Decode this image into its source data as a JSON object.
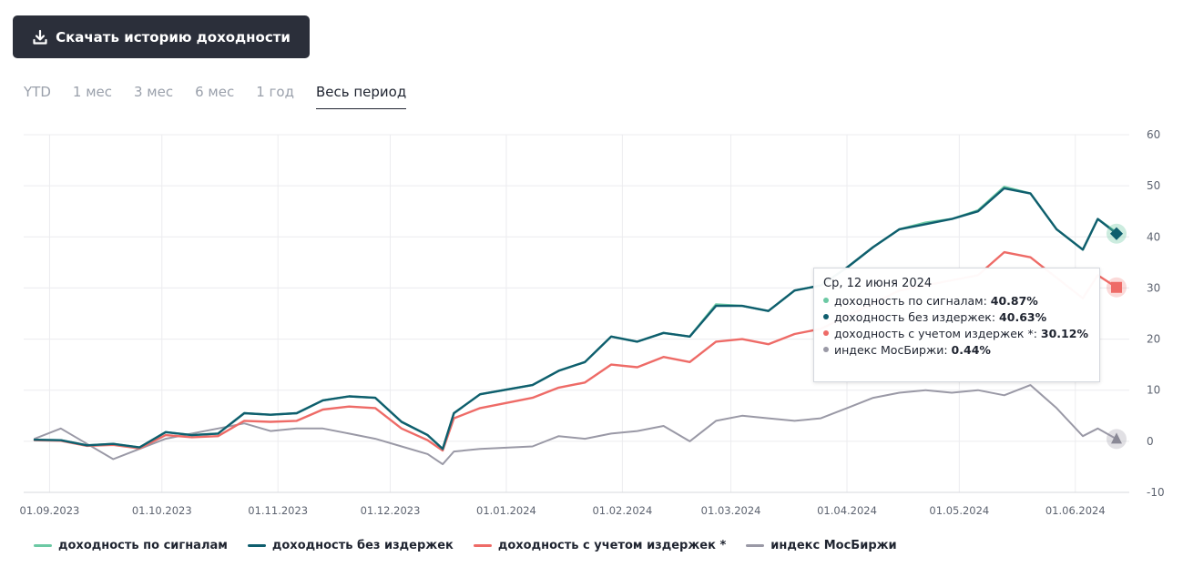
{
  "download_button": {
    "label": "Скачать историю доходности",
    "icon": "download-icon"
  },
  "period_tabs": [
    {
      "label": "YTD",
      "active": false
    },
    {
      "label": "1 мес",
      "active": false
    },
    {
      "label": "3 мес",
      "active": false
    },
    {
      "label": "6 мес",
      "active": false
    },
    {
      "label": "1 год",
      "active": false
    },
    {
      "label": "Весь период",
      "active": true
    }
  ],
  "tooltip": {
    "date": "Ср, 12 июня 2024",
    "rows": [
      {
        "label": "доходность по сигналам",
        "value": "40.87%",
        "color": "#6cc9a4"
      },
      {
        "label": "доходность без издержек",
        "value": "40.63%",
        "color": "#0f5e6e"
      },
      {
        "label": "доходность с учетом издержек *",
        "value": "30.12%",
        "color": "#ee6b67"
      },
      {
        "label": "индекс МосБиржи",
        "value": "0.44%",
        "color": "#9a99a6"
      }
    ]
  },
  "legend": [
    {
      "label": "доходность по сигналам",
      "color": "#6cc9a4"
    },
    {
      "label": "доходность без издержек",
      "color": "#0f5e6e"
    },
    {
      "label": "доходность с учетом издержек *",
      "color": "#ee6b67"
    },
    {
      "label": "индекс МосБиржи",
      "color": "#9a99a6"
    }
  ],
  "chart_data": {
    "type": "line",
    "x": [
      "2023-08-28",
      "2023-09-04",
      "2023-09-11",
      "2023-09-18",
      "2023-09-25",
      "2023-10-02",
      "2023-10-09",
      "2023-10-16",
      "2023-10-23",
      "2023-10-30",
      "2023-11-06",
      "2023-11-13",
      "2023-11-20",
      "2023-11-27",
      "2023-12-04",
      "2023-12-11",
      "2023-12-15",
      "2023-12-18",
      "2023-12-25",
      "2024-01-08",
      "2024-01-15",
      "2024-01-22",
      "2024-01-29",
      "2024-02-05",
      "2024-02-12",
      "2024-02-19",
      "2024-02-26",
      "2024-03-04",
      "2024-03-11",
      "2024-03-18",
      "2024-03-25",
      "2024-04-01",
      "2024-04-08",
      "2024-04-15",
      "2024-04-22",
      "2024-04-29",
      "2024-05-06",
      "2024-05-13",
      "2024-05-20",
      "2024-05-27",
      "2024-06-03",
      "2024-06-07",
      "2024-06-12"
    ],
    "x_tick_labels": [
      "01.09.2023",
      "01.10.2023",
      "01.11.2023",
      "01.12.2023",
      "01.01.2024",
      "01.02.2024",
      "01.03.2024",
      "01.04.2024",
      "01.05.2024",
      "01.06.2024"
    ],
    "x_ticks": [
      "2023-09-01",
      "2023-10-01",
      "2023-11-01",
      "2023-12-01",
      "2024-01-01",
      "2024-02-01",
      "2024-03-01",
      "2024-04-01",
      "2024-05-01",
      "2024-06-01"
    ],
    "ylim": [
      -10,
      60
    ],
    "y_ticks": [
      -10,
      0,
      10,
      20,
      30,
      40,
      50,
      60
    ],
    "y_axis_position": "right",
    "grid": true,
    "legend_position": "bottom-left",
    "series": [
      {
        "name": "доходность по сигналам",
        "color": "#6cc9a4",
        "values": [
          0.3,
          0.2,
          -0.8,
          -0.5,
          -1.2,
          1.8,
          1.2,
          1.5,
          5.5,
          5.2,
          5.5,
          8.0,
          8.8,
          8.5,
          3.8,
          1.2,
          -1.5,
          5.5,
          9.2,
          11.0,
          13.8,
          15.5,
          20.5,
          19.5,
          21.2,
          20.5,
          26.8,
          26.5,
          25.5,
          29.5,
          30.5,
          34.0,
          38.0,
          41.5,
          42.8,
          43.5,
          45.2,
          49.8,
          48.5,
          41.5,
          37.5,
          43.5,
          40.87
        ]
      },
      {
        "name": "доходность без издержек",
        "color": "#0f5e6e",
        "values": [
          0.3,
          0.2,
          -0.8,
          -0.5,
          -1.2,
          1.8,
          1.2,
          1.5,
          5.5,
          5.2,
          5.5,
          8.0,
          8.8,
          8.5,
          3.8,
          1.2,
          -1.5,
          5.5,
          9.2,
          11.0,
          13.8,
          15.5,
          20.5,
          19.5,
          21.2,
          20.5,
          26.5,
          26.5,
          25.5,
          29.5,
          30.5,
          34.0,
          38.0,
          41.5,
          42.5,
          43.5,
          45.0,
          49.5,
          48.5,
          41.5,
          37.5,
          43.5,
          40.63
        ]
      },
      {
        "name": "доходность с учетом издержек *",
        "color": "#ee6b67",
        "values": [
          0.2,
          0.1,
          -0.9,
          -0.7,
          -1.4,
          1.2,
          0.8,
          1.0,
          4.0,
          3.8,
          4.0,
          6.2,
          6.8,
          6.5,
          2.5,
          0.2,
          -1.8,
          4.5,
          6.5,
          8.5,
          10.5,
          11.5,
          15.0,
          14.5,
          16.5,
          15.5,
          19.5,
          20.0,
          19.0,
          21.0,
          22.0,
          24.5,
          27.0,
          29.5,
          30.5,
          31.5,
          32.5,
          37.0,
          36.0,
          32.0,
          28.0,
          32.5,
          30.12
        ]
      },
      {
        "name": "индекс МосБиржи",
        "color": "#9a99a6",
        "values": [
          0.5,
          2.5,
          -0.5,
          -3.5,
          -1.5,
          0.5,
          1.5,
          2.5,
          3.5,
          2.0,
          2.5,
          2.5,
          1.5,
          0.5,
          -1.0,
          -2.5,
          -4.5,
          -2.0,
          -1.5,
          -1.0,
          1.0,
          0.5,
          1.5,
          2.0,
          3.0,
          0.0,
          4.0,
          5.0,
          4.5,
          4.0,
          4.5,
          6.5,
          8.5,
          9.5,
          10.0,
          9.5,
          10.0,
          9.0,
          11.0,
          6.5,
          1.0,
          2.5,
          0.44
        ]
      }
    ]
  }
}
